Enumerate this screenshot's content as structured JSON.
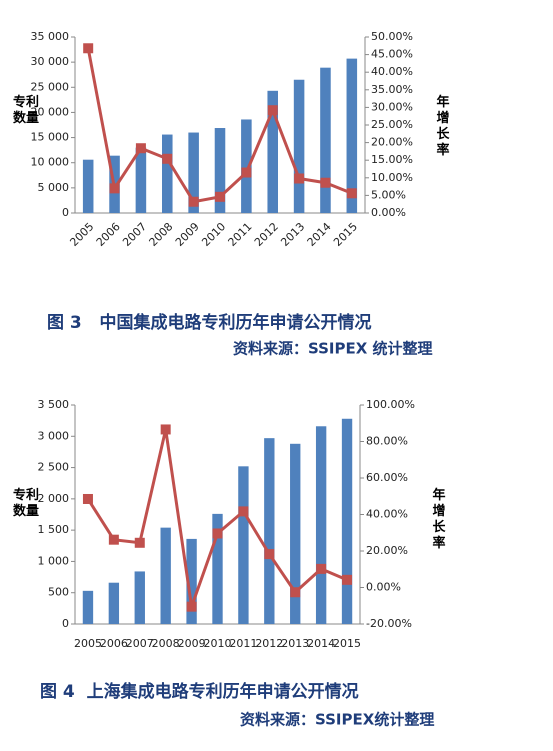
{
  "chart_data": [
    {
      "type": "bar-line",
      "title": "图 3   中国集成电路专利历年申请公开情况",
      "source": "资料来源：SSIPEX 统计整理",
      "y_label": "专利数量",
      "y2_label": "年增长率",
      "categories": [
        "2005",
        "2006",
        "2007",
        "2008",
        "2009",
        "2010",
        "2011",
        "2012",
        "2013",
        "2014",
        "2015"
      ],
      "series": [
        {
          "name": "专利数量",
          "color": "#4f81bd",
          "values": [
            10600,
            11400,
            13000,
            15600,
            16000,
            16900,
            18600,
            24300,
            26500,
            28900,
            30700
          ]
        },
        {
          "name": "年增长率",
          "color": "#c0504d",
          "axis": "y2",
          "values": [
            46.8,
            7.0,
            18.4,
            15.4,
            3.2,
            4.6,
            11.5,
            29.2,
            9.8,
            8.6,
            5.6
          ]
        }
      ],
      "ylim": [
        0,
        35000
      ],
      "yticks": [
        0,
        {
          "value": 5000,
          "label": "5 000"
        },
        {
          "value": 10000,
          "label": "10 000"
        },
        {
          "value": 15000,
          "label": "15 000"
        },
        {
          "value": 20000,
          "label": "20 000"
        },
        {
          "value": 25000,
          "label": "25 000"
        },
        {
          "value": 30000,
          "label": "30 000"
        },
        {
          "value": 35000,
          "label": "35 000"
        }
      ],
      "y2lim": [
        0,
        50
      ],
      "y2ticks": [
        {
          "value": 0,
          "label": "0.00%"
        },
        {
          "value": 5,
          "label": "5.00%"
        },
        {
          "value": 10,
          "label": "10.00%"
        },
        {
          "value": 15,
          "label": "15.00%"
        },
        {
          "value": 20,
          "label": "20.00%"
        },
        {
          "value": 25,
          "label": "25.00%"
        },
        {
          "value": 30,
          "label": "30.00%"
        },
        {
          "value": 35,
          "label": "35.00%"
        },
        {
          "value": 40,
          "label": "40.00%"
        },
        {
          "value": 45,
          "label": "45.00%"
        },
        {
          "value": 50,
          "label": "50.00%"
        }
      ],
      "grid": false
    },
    {
      "type": "bar-line",
      "title": "图 4  上海集成电路专利历年申请公开情况",
      "source": "资料来源：SSIPEX统计整理",
      "y_label": "专利数量",
      "y2_label": "年增长率",
      "categories": [
        "2005",
        "2006",
        "2007",
        "2008",
        "2009",
        "2010",
        "2011",
        "2012",
        "2013",
        "2014",
        "2015"
      ],
      "series": [
        {
          "name": "专利数量",
          "color": "#4f81bd",
          "values": [
            530,
            660,
            840,
            1540,
            1360,
            1760,
            2520,
            2970,
            2880,
            3160,
            3280
          ]
        },
        {
          "name": "年增长率",
          "color": "#c0504d",
          "axis": "y2",
          "values": [
            48.5,
            26.2,
            24.5,
            86.6,
            -10.5,
            29.6,
            41.7,
            18.3,
            -2.6,
            10.2,
            4.2
          ]
        }
      ],
      "ylim": [
        0,
        3500
      ],
      "yticks": [
        0,
        500,
        {
          "value": 1000,
          "label": "1 000"
        },
        {
          "value": 1500,
          "label": "1 500"
        },
        {
          "value": 2000,
          "label": "2 000"
        },
        {
          "value": 2500,
          "label": "2 500"
        },
        {
          "value": 3000,
          "label": "3 000"
        },
        {
          "value": 3500,
          "label": "3 500"
        }
      ],
      "y2lim": [
        -20,
        100
      ],
      "y2ticks": [
        {
          "value": -20,
          "label": "-20.00%"
        },
        {
          "value": 0,
          "label": "0.00%"
        },
        {
          "value": 20,
          "label": "20.00%"
        },
        {
          "value": 40,
          "label": "40.00%"
        },
        {
          "value": 60,
          "label": "60.00%"
        },
        {
          "value": 80,
          "label": "80.00%"
        },
        {
          "value": 100,
          "label": "100.00%"
        }
      ],
      "grid": false
    }
  ]
}
